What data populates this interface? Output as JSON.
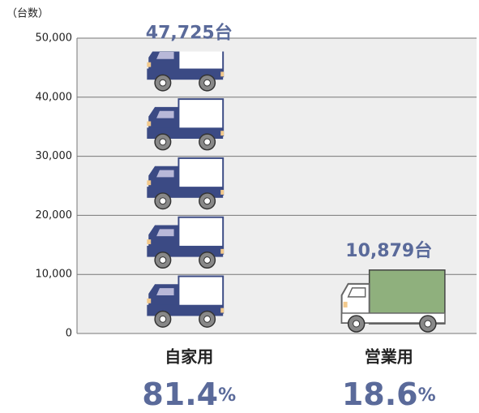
{
  "chart_data": {
    "type": "pictograph",
    "y_axis_label": "（台数）",
    "categories": [
      "自家用",
      "営業用"
    ],
    "values": [
      47725,
      10879
    ],
    "value_labels": [
      "47,725台",
      "10,879台"
    ],
    "shares": [
      81.4,
      18.6
    ],
    "share_unit": "%",
    "colors": [
      "#3b4a84",
      "#8fb07d"
    ],
    "ylim": [
      0,
      50000
    ],
    "yticks": [
      0,
      {
        "value": 10000,
        "label": "10,000"
      },
      {
        "value": 20000,
        "label": "20,000"
      },
      {
        "value": 30000,
        "label": "30,000"
      },
      {
        "value": 40000,
        "label": "40,000"
      },
      {
        "value": 50000,
        "label": "50,000"
      }
    ],
    "grid": true
  }
}
